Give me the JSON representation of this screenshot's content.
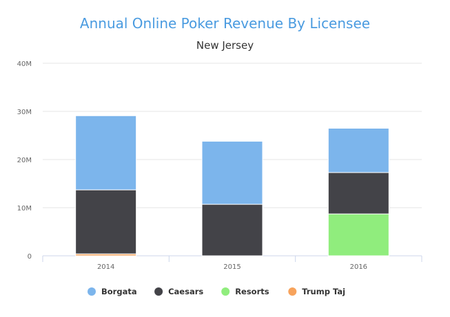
{
  "chart_data": {
    "type": "bar",
    "stacked": true,
    "title": "Annual Online Poker Revenue By Licensee",
    "subtitle": "New Jersey",
    "categories": [
      "2014",
      "2015",
      "2016"
    ],
    "ylim": [
      0,
      40000000
    ],
    "yticks": [
      0,
      10000000,
      20000000,
      30000000,
      40000000
    ],
    "ytick_labels": [
      "0",
      "10M",
      "20M",
      "30M",
      "40M"
    ],
    "grid": true,
    "legend_position": "bottom",
    "series": [
      {
        "name": "Trump Taj",
        "color": "#f7a35c",
        "values": [
          400000,
          0,
          0
        ]
      },
      {
        "name": "Resorts",
        "color": "#90ed7d",
        "values": [
          0,
          0,
          8700000
        ]
      },
      {
        "name": "Caesars",
        "color": "#434348",
        "values": [
          13300000,
          10700000,
          8600000
        ]
      },
      {
        "name": "Borgata",
        "color": "#7cb5ec",
        "values": [
          15400000,
          13100000,
          9200000
        ]
      }
    ],
    "legend_order": [
      "Borgata",
      "Caesars",
      "Resorts",
      "Trump Taj"
    ]
  }
}
